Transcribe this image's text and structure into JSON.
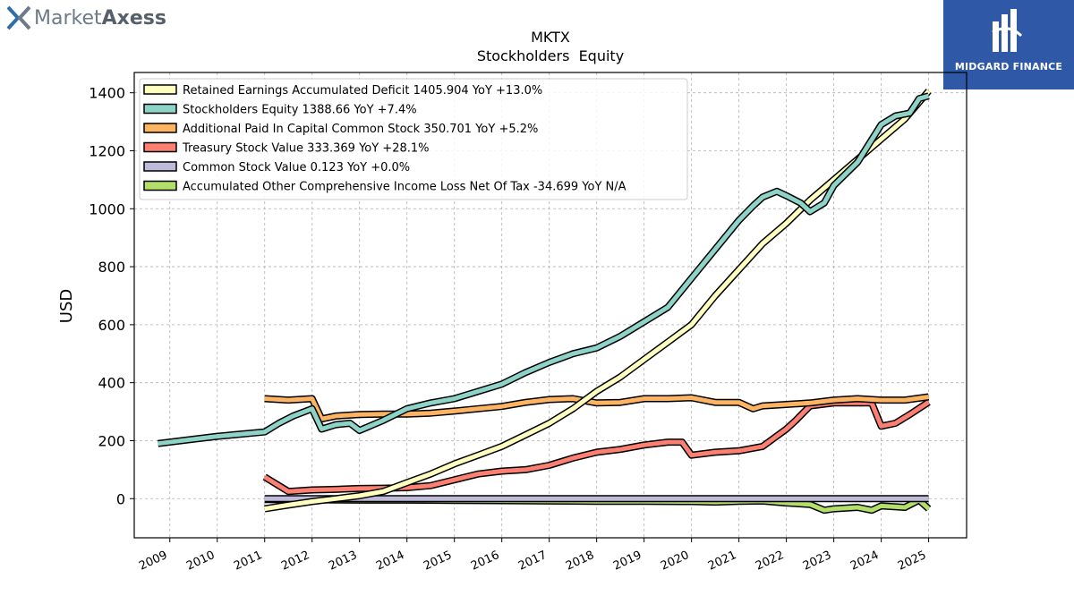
{
  "branding": {
    "left_logo_light": "Market",
    "left_logo_bold": "Axess",
    "right_badge": "MIDGARD FINANCE"
  },
  "chart_data": {
    "type": "line",
    "title": "MKTX",
    "subtitle": "Stockholders  Equity",
    "xlabel": "",
    "ylabel": "USD",
    "xlim": [
      2008.25,
      2025.8
    ],
    "ylim": [
      -135,
      1470
    ],
    "x_ticks": [
      "2009",
      "2010",
      "2011",
      "2012",
      "2013",
      "2014",
      "2015",
      "2016",
      "2017",
      "2018",
      "2019",
      "2020",
      "2021",
      "2022",
      "2023",
      "2024",
      "2025"
    ],
    "y_ticks": [
      0,
      200,
      400,
      600,
      800,
      1000,
      1200,
      1400
    ],
    "grid": true,
    "legend_position": "top-left",
    "series": [
      {
        "name": "Retained Earnings Accumulated Deficit  1405.904 YoY +13.0%",
        "color": "#ffffbf",
        "x": [
          2011.0,
          2011.5,
          2012.0,
          2012.5,
          2013.0,
          2013.5,
          2014.0,
          2014.5,
          2015.0,
          2015.5,
          2016.0,
          2016.5,
          2017.0,
          2017.5,
          2018.0,
          2018.5,
          2019.0,
          2019.5,
          2020.0,
          2020.5,
          2021.0,
          2021.5,
          2022.0,
          2022.5,
          2023.0,
          2023.5,
          2024.0,
          2024.5,
          2025.0
        ],
        "y": [
          -35,
          -22,
          -10,
          0,
          10,
          25,
          55,
          85,
          120,
          150,
          180,
          220,
          260,
          310,
          370,
          420,
          480,
          540,
          600,
          700,
          790,
          880,
          950,
          1030,
          1100,
          1170,
          1240,
          1310,
          1406
        ]
      },
      {
        "name": "Stockholders Equity  1388.66 YoY +7.4%",
        "color": "#8dd3c7",
        "x": [
          2008.75,
          2009.5,
          2010.0,
          2011.0,
          2011.3,
          2011.6,
          2012.0,
          2012.2,
          2012.5,
          2012.8,
          2013.0,
          2013.5,
          2014.0,
          2014.5,
          2015.0,
          2015.5,
          2016.0,
          2016.5,
          2017.0,
          2017.5,
          2018.0,
          2018.5,
          2019.0,
          2019.5,
          2020.0,
          2020.5,
          2021.0,
          2021.3,
          2021.5,
          2021.8,
          2022.0,
          2022.3,
          2022.5,
          2022.8,
          2023.0,
          2023.5,
          2024.0,
          2024.3,
          2024.6,
          2024.8,
          2025.0
        ],
        "y": [
          190,
          205,
          215,
          230,
          260,
          285,
          310,
          240,
          255,
          260,
          235,
          270,
          310,
          330,
          345,
          370,
          395,
          435,
          470,
          500,
          520,
          560,
          610,
          660,
          760,
          860,
          960,
          1010,
          1040,
          1060,
          1045,
          1020,
          990,
          1020,
          1080,
          1160,
          1290,
          1320,
          1330,
          1380,
          1389
        ]
      },
      {
        "name": "Additional Paid In Capital Common Stock  350.701 YoY +5.2%",
        "color": "#fdb462",
        "x": [
          2011.0,
          2011.5,
          2012.0,
          2012.2,
          2012.5,
          2013.0,
          2013.5,
          2014.0,
          2014.5,
          2015.0,
          2015.5,
          2016.0,
          2016.5,
          2017.0,
          2017.5,
          2018.0,
          2018.5,
          2019.0,
          2019.5,
          2020.0,
          2020.5,
          2021.0,
          2021.3,
          2021.5,
          2022.0,
          2022.5,
          2023.0,
          2023.5,
          2024.0,
          2024.5,
          2025.0
        ],
        "y": [
          345,
          340,
          345,
          275,
          285,
          290,
          292,
          292,
          295,
          302,
          310,
          318,
          332,
          342,
          345,
          330,
          332,
          345,
          345,
          348,
          332,
          332,
          310,
          320,
          325,
          330,
          340,
          345,
          340,
          340,
          351
        ]
      },
      {
        "name": "Treasury Stock Value  333.369 YoY +28.1%",
        "color": "#fb8072",
        "x": [
          2011.0,
          2011.5,
          2012.0,
          2012.5,
          2013.0,
          2013.5,
          2014.0,
          2014.5,
          2015.0,
          2015.5,
          2016.0,
          2016.5,
          2017.0,
          2017.5,
          2018.0,
          2018.5,
          2019.0,
          2019.5,
          2019.8,
          2020.0,
          2020.5,
          2021.0,
          2021.5,
          2022.0,
          2022.2,
          2022.5,
          2023.0,
          2023.5,
          2023.8,
          2024.0,
          2024.3,
          2024.6,
          2025.0
        ],
        "y": [
          75,
          25,
          30,
          32,
          35,
          36,
          38,
          45,
          65,
          85,
          95,
          100,
          115,
          140,
          160,
          170,
          185,
          195,
          195,
          150,
          160,
          165,
          180,
          240,
          270,
          320,
          330,
          330,
          330,
          250,
          260,
          290,
          333
        ]
      },
      {
        "name": "Common Stock Value  0.123 YoY +0.0%",
        "color": "#bebada",
        "x": [
          2011.0,
          2025.0
        ],
        "y": [
          0.1,
          0.123
        ]
      },
      {
        "name": "Accumulated Other Comprehensive Income Loss Net Of Tax  -34.699 YoY N/A",
        "color": "#b3de69",
        "x": [
          2011.0,
          2012.0,
          2013.0,
          2014.0,
          2015.0,
          2016.0,
          2017.0,
          2018.0,
          2019.0,
          2020.0,
          2020.5,
          2021.0,
          2021.5,
          2022.0,
          2022.5,
          2022.8,
          2023.0,
          2023.5,
          2023.8,
          2024.0,
          2024.5,
          2024.8,
          2025.0
        ],
        "y": [
          -3,
          -4,
          -5,
          -5,
          -6,
          -7,
          -8,
          -9,
          -9,
          -10,
          -12,
          -9,
          -8,
          -15,
          -20,
          -40,
          -35,
          -30,
          -40,
          -25,
          -30,
          -5,
          -35
        ]
      }
    ]
  }
}
